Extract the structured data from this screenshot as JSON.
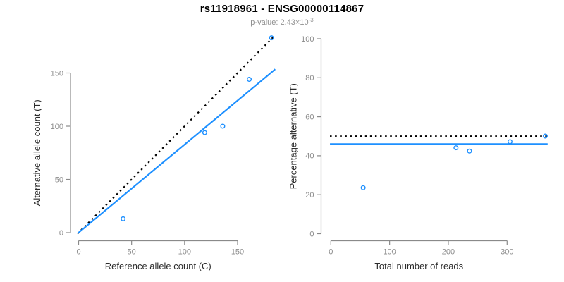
{
  "header": {
    "title": "rs11918961 - ENSG00000114867",
    "subtitle_base": "p-value: 2.43×10",
    "subtitle_exponent": "-3"
  },
  "colors": {
    "accent_blue": "#1E90FF",
    "line_black": "#000000",
    "axis_gray": "#8A8A8A",
    "tick_label_gray": "#8C8C8C",
    "axis_title_color": "#2B2B2B",
    "subtitle_gray": "#909090",
    "background": "#FFFFFF"
  },
  "chart_data": [
    {
      "type": "scatter",
      "panel": "left",
      "xlabel": "Reference allele count (C)",
      "ylabel": "Alternative allele count (T)",
      "xticks": [
        0,
        50,
        100,
        150
      ],
      "yticks": [
        0,
        50,
        100,
        150
      ],
      "xlim": [
        -1,
        186
      ],
      "ylim": [
        -1,
        186
      ],
      "grid": false,
      "legend": null,
      "points": [
        [
          42,
          13
        ],
        [
          119,
          94
        ],
        [
          136,
          100
        ],
        [
          161,
          144
        ],
        [
          182,
          183
        ]
      ],
      "lines": [
        {
          "name": "identity-line",
          "style": "dotted",
          "color": "#000000",
          "x1": -1,
          "y1": -1,
          "x2": 184.5,
          "y2": 184.5
        },
        {
          "name": "fit-line",
          "style": "solid",
          "color": "#1E90FF",
          "x1": -1,
          "y1": -0.8,
          "x2": 185.5,
          "y2": 153.5
        }
      ]
    },
    {
      "type": "scatter",
      "panel": "right",
      "xlabel": "Total number of reads",
      "ylabel": "Percentage alternative (T)",
      "xticks": [
        0,
        100,
        200,
        300
      ],
      "yticks": [
        0,
        20,
        40,
        60,
        80,
        100
      ],
      "xlim": [
        -2,
        370
      ],
      "ylim": [
        0,
        100
      ],
      "grid": false,
      "legend": null,
      "points": [
        [
          55,
          23.6
        ],
        [
          213,
          44.1
        ],
        [
          236,
          42.4
        ],
        [
          305,
          47.2
        ],
        [
          365,
          50.1
        ]
      ],
      "lines": [
        {
          "name": "expected-50pct-line",
          "style": "dotted",
          "color": "#000000",
          "x1": -1.5,
          "y1": 50,
          "x2": 369,
          "y2": 50
        },
        {
          "name": "fit-line",
          "style": "solid",
          "color": "#1E90FF",
          "x1": -1.5,
          "y1": 46,
          "x2": 369,
          "y2": 46
        }
      ]
    }
  ]
}
